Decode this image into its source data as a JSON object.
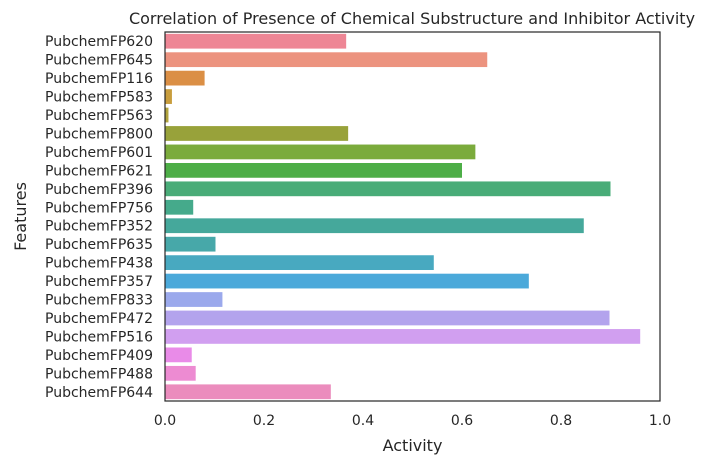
{
  "chart_data": {
    "type": "bar",
    "orientation": "horizontal",
    "title": "Correlation of Presence of Chemical Substructure and Inhibitor Activity",
    "xlabel": "Activity",
    "ylabel": "Features",
    "xlim": [
      0,
      1.0
    ],
    "xticks": [
      "0.0",
      "0.2",
      "0.4",
      "0.6",
      "0.8",
      "1.0"
    ],
    "grid": false,
    "categories": [
      "PubchemFP620",
      "PubchemFP645",
      "PubchemFP116",
      "PubchemFP583",
      "PubchemFP563",
      "PubchemFP800",
      "PubchemFP601",
      "PubchemFP621",
      "PubchemFP396",
      "PubchemFP756",
      "PubchemFP352",
      "PubchemFP635",
      "PubchemFP438",
      "PubchemFP357",
      "PubchemFP833",
      "PubchemFP472",
      "PubchemFP516",
      "PubchemFP409",
      "PubchemFP488",
      "PubchemFP644"
    ],
    "values": [
      0.366,
      0.651,
      0.08,
      0.014,
      0.007,
      0.37,
      0.627,
      0.6,
      0.9,
      0.057,
      0.846,
      0.102,
      0.543,
      0.735,
      0.116,
      0.898,
      0.96,
      0.054,
      0.062,
      0.335
    ],
    "colors": [
      "#ee8695",
      "#ec937f",
      "#db8f45",
      "#c89d3d",
      "#b1a33d",
      "#98a23a",
      "#7bab3c",
      "#4dae47",
      "#49ac78",
      "#45aa8b",
      "#45a89b",
      "#47a8a9",
      "#48a9c0",
      "#4ba9da",
      "#9ba9ec",
      "#b3a3ed",
      "#d19ff0",
      "#e98be8",
      "#ed8bd2",
      "#eb8cbd"
    ]
  }
}
